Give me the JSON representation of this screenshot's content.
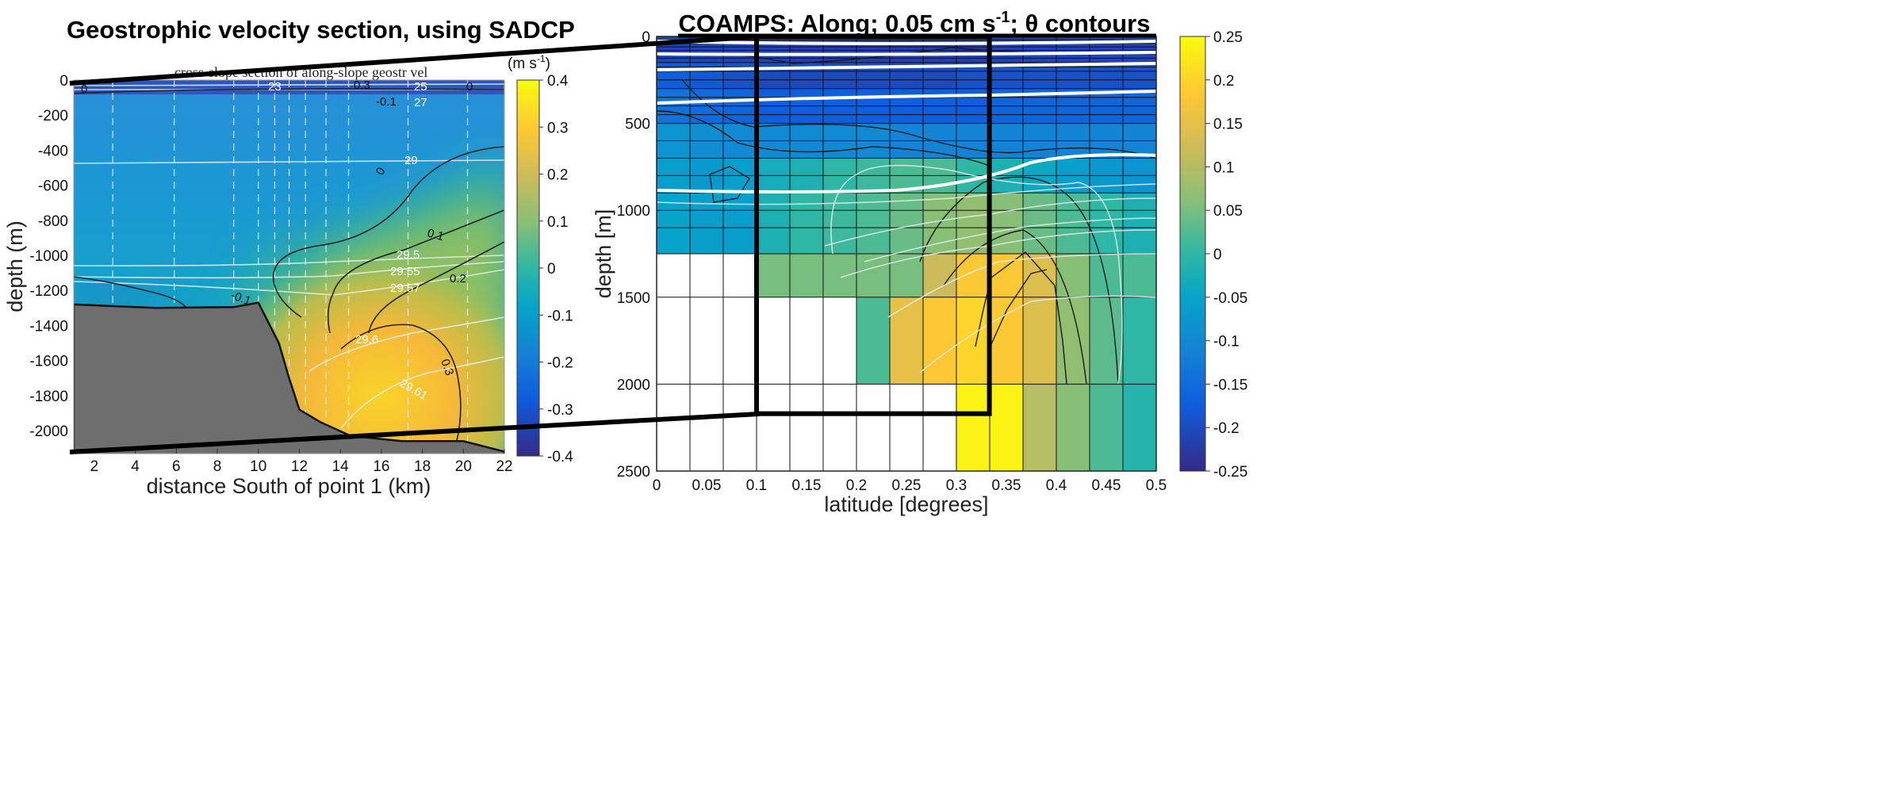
{
  "chart_data": [
    {
      "type": "heatmap",
      "title": "Geostrophic velocity section, using SADCP",
      "subtitle": "cross-slope section of along-slope geostr vel",
      "xlabel": "distance South of point 1 (km)",
      "ylabel": "depth (m)",
      "xlim": [
        1,
        22
      ],
      "ylim": [
        -2130,
        0
      ],
      "xticks": [
        "2",
        "4",
        "6",
        "8",
        "10",
        "12",
        "14",
        "16",
        "18",
        "20",
        "22"
      ],
      "yticks": [
        "0",
        "-200",
        "-400",
        "-600",
        "-800",
        "-1000",
        "-1200",
        "-1400",
        "-1600",
        "-1800",
        "-2000"
      ],
      "colorbar": {
        "label": "(m s-1)",
        "label_main": "(m s",
        "label_sup": "-1",
        "label_close": ")",
        "range": [
          -0.4,
          0.4
        ],
        "ticks": [
          "0.4",
          "0.3",
          "0.2",
          "0.1",
          "0",
          "-0.1",
          "-0.2",
          "-0.3",
          "-0.4"
        ],
        "colormap": "parula"
      },
      "velocity_contour_labels": [
        "0",
        "-0.1",
        "0.3",
        "0",
        "0",
        "0.1",
        "0.2",
        "-0.1",
        "0.3"
      ],
      "density_contour_labels": [
        "23",
        "25",
        "27",
        "29",
        "29.5",
        "29.55",
        "29.57",
        "29.6",
        "29.61"
      ],
      "station_km": [
        2.9,
        5.9,
        8.8,
        10.0,
        10.8,
        11.5,
        12.3,
        13.3,
        14.4,
        17.3,
        20.2
      ],
      "bathymetry": {
        "color": "#6e6e6e",
        "km": [
          1,
          5,
          8.8,
          10,
          11,
          11.5,
          12,
          13,
          14.5,
          17,
          20,
          22
        ],
        "depth": [
          -1280,
          -1300,
          -1295,
          -1270,
          -1500,
          -1700,
          -1880,
          -1950,
          -2030,
          -2060,
          -2060,
          -2120
        ]
      }
    },
    {
      "type": "heatmap",
      "title_main": "COAMPS:  Along; 0.05 cm s",
      "title_sup": "-1",
      "title_tail": "; θ contours",
      "xlabel": "latitude [degrees]",
      "ylabel": "depth [m]",
      "xlim": [
        0,
        0.5
      ],
      "ylim": [
        2500,
        0
      ],
      "xticks": [
        "0",
        "0.05",
        "0.1",
        "0.15",
        "0.2",
        "0.25",
        "0.3",
        "0.35",
        "0.4",
        "0.45",
        "0.5"
      ],
      "yticks": [
        "0",
        "500",
        "1000",
        "1500",
        "2000",
        "2500"
      ],
      "colorbar": {
        "range": [
          -0.25,
          0.25
        ],
        "ticks": [
          "0.25",
          "0.2",
          "0.15",
          "0.1",
          "0.05",
          "0",
          "-0.05",
          "-0.1",
          "-0.15",
          "-0.2",
          "-0.25"
        ],
        "colormap": "parula"
      },
      "column_width_deg": 0.03333,
      "depth_bands": [
        0,
        150,
        300,
        500,
        700,
        900,
        1250,
        1500,
        2000,
        2500
      ],
      "grid_depths": [
        20,
        40,
        60,
        80,
        100,
        125,
        150,
        175,
        200,
        250,
        300,
        350,
        400,
        450,
        500,
        600,
        700,
        800,
        900,
        1000,
        1100,
        1250,
        1500,
        2000
      ],
      "values": [
        [
          -0.21,
          -0.21,
          -0.21,
          -0.21,
          -0.22,
          -0.22,
          -0.22,
          -0.22,
          -0.22,
          -0.22,
          -0.21,
          -0.21,
          -0.21,
          -0.21,
          -0.21
        ],
        [
          -0.17,
          -0.18,
          -0.19,
          -0.2,
          -0.2,
          -0.2,
          -0.2,
          -0.2,
          -0.2,
          -0.19,
          -0.19,
          -0.19,
          -0.19,
          -0.19,
          -0.19
        ],
        [
          -0.14,
          -0.15,
          -0.16,
          -0.17,
          -0.17,
          -0.17,
          -0.17,
          -0.17,
          -0.17,
          -0.17,
          -0.16,
          -0.16,
          -0.16,
          -0.16,
          -0.16
        ],
        [
          -0.08,
          -0.09,
          -0.1,
          -0.1,
          -0.1,
          -0.1,
          -0.1,
          -0.11,
          -0.11,
          -0.11,
          -0.11,
          -0.11,
          -0.11,
          -0.11,
          -0.11
        ],
        [
          -0.06,
          -0.07,
          -0.06,
          -0.03,
          -0.02,
          0,
          0.01,
          0.02,
          0.02,
          0,
          -0.02,
          -0.04,
          -0.06,
          -0.07,
          -0.08
        ],
        [
          -0.05,
          -0.06,
          -0.06,
          -0.02,
          0,
          0.01,
          0.02,
          0.04,
          0.06,
          0.07,
          0.06,
          0.04,
          0.02,
          0,
          -0.02
        ],
        [
          null,
          null,
          null,
          0.05,
          0.05,
          0.05,
          0.05,
          0.05,
          0.12,
          0.18,
          0.18,
          0.14,
          0.06,
          0.02,
          0.02
        ],
        [
          null,
          null,
          null,
          null,
          null,
          null,
          0.02,
          0.15,
          0.18,
          0.2,
          0.18,
          0.14,
          0.07,
          0.03,
          0.0
        ],
        [
          null,
          null,
          null,
          null,
          null,
          null,
          null,
          null,
          null,
          0.24,
          0.24,
          0.1,
          0.06,
          0.02,
          -0.01
        ]
      ],
      "highlight_box": {
        "lat": [
          0.1,
          0.333
        ],
        "depth": [
          0,
          2170
        ]
      }
    }
  ]
}
